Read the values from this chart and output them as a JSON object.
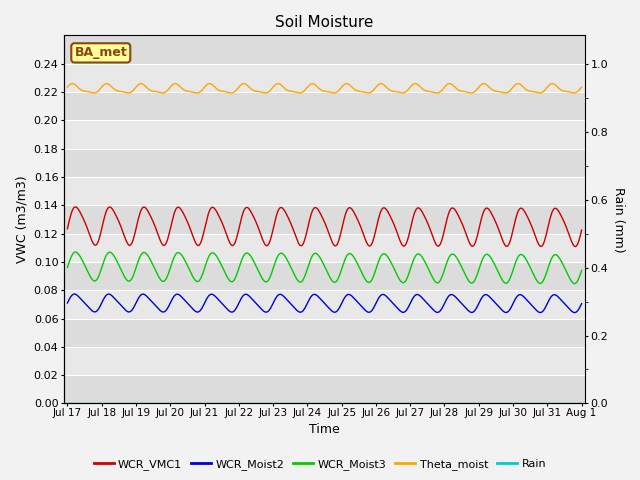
{
  "title": "Soil Moisture",
  "xlabel": "Time",
  "ylabel_left": "VWC (m3/m3)",
  "ylabel_right": "Rain (mm)",
  "ylim_left": [
    0.0,
    0.26
  ],
  "ylim_right": [
    0.0,
    1.083333
  ],
  "yticks_left": [
    0.0,
    0.02,
    0.04,
    0.06,
    0.08,
    0.1,
    0.12,
    0.14,
    0.16,
    0.18,
    0.2,
    0.22,
    0.24
  ],
  "yticks_right": [
    0.0,
    0.2,
    0.4,
    0.6,
    0.8,
    1.0
  ],
  "xtick_labels": [
    "Jul 17",
    "Jul 18",
    "Jul 19",
    "Jul 20",
    "Jul 21",
    "Jul 22",
    "Jul 23",
    "Jul 24",
    "Jul 25",
    "Jul 26",
    "Jul 27",
    "Jul 28",
    "Jul 29",
    "Jul 30",
    "Jul 31",
    "Aug 1"
  ],
  "annotation_text": "BA_met",
  "annotation_bg": "#FFFF99",
  "annotation_border": "#8B4513",
  "colors": {
    "WCR_VMC1": "#CC0000",
    "WCR_Moist2": "#0000DD",
    "WCR_Moist3": "#00CC00",
    "Theta_moist": "#FFA500",
    "Rain": "#00CCCC"
  },
  "bg_bands": [
    "#DCDCDC",
    "#E8E8E8"
  ],
  "fig_bg": "#F2F2F2"
}
